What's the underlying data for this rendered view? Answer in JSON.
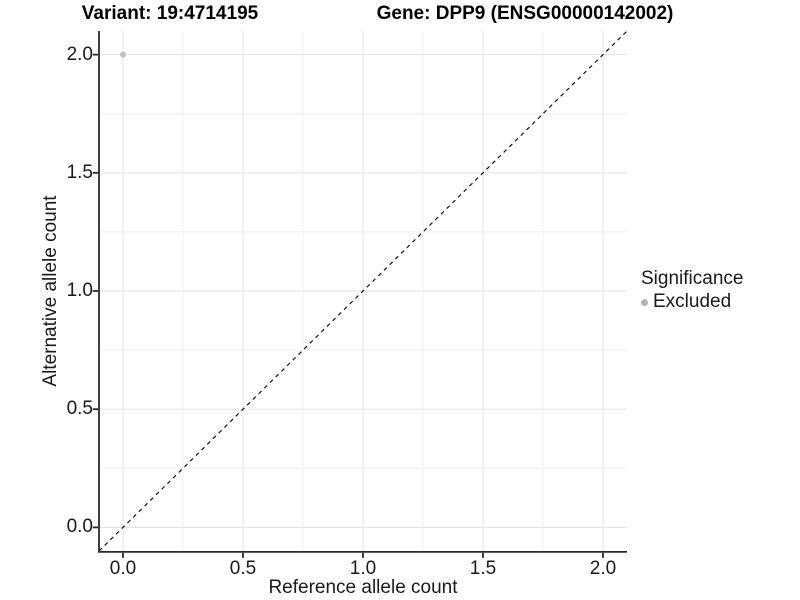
{
  "chart_data": {
    "type": "scatter",
    "title_left": "Variant: 19:4714195",
    "title_right": "Gene: DPP9 (ENSG00000142002)",
    "xlabel": "Reference allele count",
    "ylabel": "Alternative allele count",
    "xlim": [
      -0.1,
      2.1
    ],
    "ylim": [
      -0.1,
      2.1
    ],
    "x_ticks": [
      0.0,
      0.5,
      1.0,
      1.5,
      2.0
    ],
    "y_ticks": [
      0.0,
      0.5,
      1.0,
      1.5,
      2.0
    ],
    "x_minor_ticks": [
      0.25,
      0.75,
      1.25,
      1.75
    ],
    "y_minor_ticks": [
      0.25,
      0.75,
      1.25,
      1.75
    ],
    "tick_decimals": 1,
    "grid": true,
    "series": [
      {
        "name": "Excluded",
        "color": "#bfbfbf",
        "points": [
          {
            "x": 0.0,
            "y": 2.0
          }
        ]
      }
    ],
    "reference_line": {
      "kind": "identity",
      "slope": 1,
      "intercept": 0,
      "style": "dashed",
      "color": "#111111"
    },
    "legend": {
      "title": "Significance",
      "position": "right",
      "items": [
        {
          "label": "Excluded",
          "color": "#b3b3b3"
        }
      ]
    }
  },
  "colors": {
    "background": "#ffffff",
    "grid_major": "#e3e3e3",
    "grid_minor": "#f0f0f0",
    "axis_line": "#2b2b2b",
    "tick_mark": "#2b2b2b",
    "text": "#1a1a1a",
    "title_text": "#000000"
  }
}
